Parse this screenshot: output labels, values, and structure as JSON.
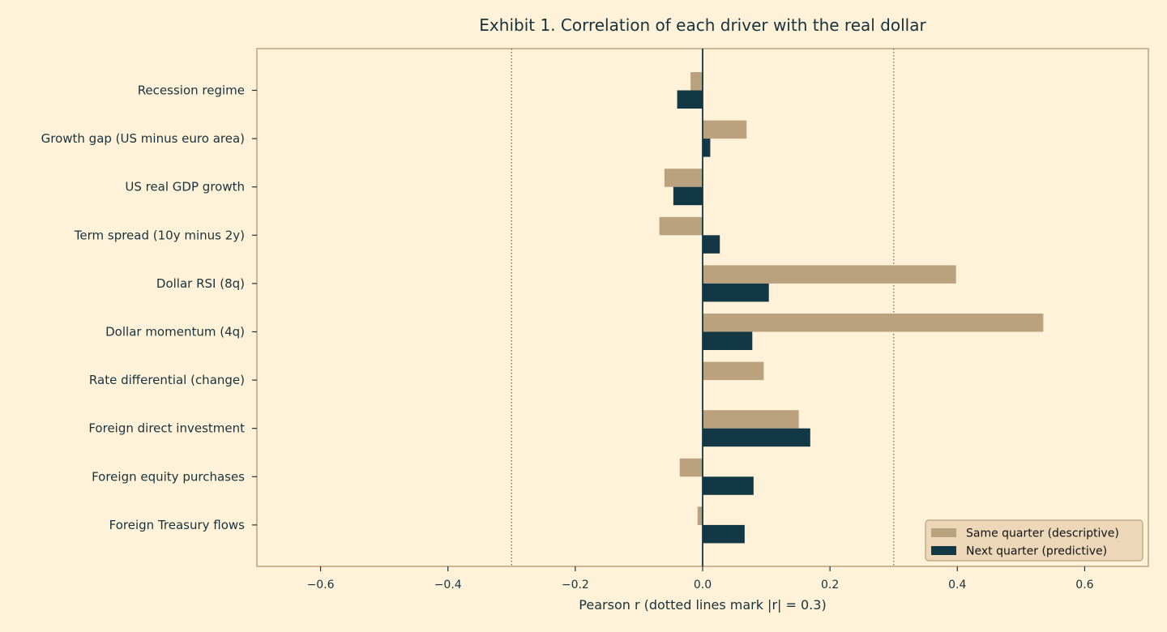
{
  "chart_data": {
    "type": "bar",
    "orientation": "horizontal",
    "title": "Exhibit 1. Correlation of each driver with the real dollar",
    "xlabel": "Pearson r (dotted lines mark |r| = 0.3)",
    "ylabel": "",
    "xlim": [
      -0.7,
      0.7
    ],
    "xticks": [
      -0.6,
      -0.4,
      -0.2,
      0.0,
      0.2,
      0.4,
      0.6
    ],
    "xtick_labels": [
      "−0.6",
      "−0.4",
      "−0.2",
      "0.0",
      "0.2",
      "0.4",
      "0.6"
    ],
    "reference_lines": [
      -0.3,
      0.3
    ],
    "zero_line": true,
    "grid": false,
    "legend_position": "bottom-right",
    "categories": [
      "Recession regime",
      "Growth gap (US minus euro area)",
      "US real GDP growth",
      "Term spread (10y minus 2y)",
      "Dollar RSI (8q)",
      "Dollar momentum (4q)",
      "Rate differential (change)",
      "Foreign direct investment",
      "Foreign equity purchases",
      "Foreign Treasury flows"
    ],
    "series": [
      {
        "name": "Same quarter (descriptive)",
        "color": "#bba27f",
        "values": [
          -0.019,
          0.069,
          -0.06,
          -0.068,
          0.398,
          0.535,
          0.096,
          0.151,
          -0.036,
          -0.008
        ]
      },
      {
        "name": "Next quarter (predictive)",
        "color": "#123845",
        "values": [
          -0.04,
          0.012,
          -0.046,
          0.027,
          0.104,
          0.078,
          0.0,
          0.169,
          0.08,
          0.066
        ]
      }
    ],
    "colors": {
      "background": "#fff2d9",
      "frame": "#bba27f",
      "text": "#17323d",
      "reference_line": "#7a6a50",
      "legend_bg": "#ecd8b9"
    }
  }
}
